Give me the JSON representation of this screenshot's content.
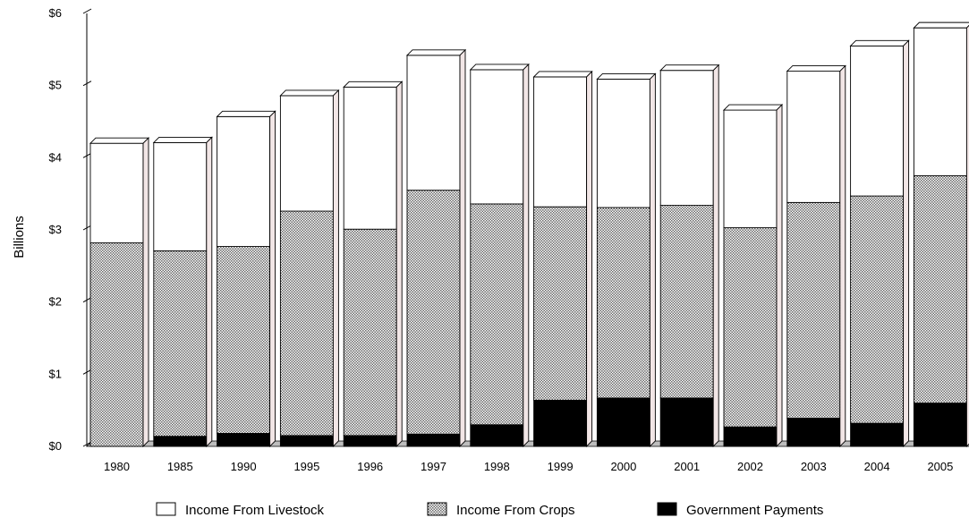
{
  "chart_data": {
    "type": "bar",
    "stacked": true,
    "style": "3d",
    "ylabel": "Billions",
    "xlabel": "",
    "ylim": [
      0,
      6
    ],
    "yticks": [
      "$0",
      "$1",
      "$2",
      "$3",
      "$4",
      "$5",
      "$6"
    ],
    "grid": false,
    "legend_position": "bottom",
    "categories": [
      "1980",
      "1985",
      "1990",
      "1995",
      "1996",
      "1997",
      "1998",
      "1999",
      "2000",
      "2001",
      "2002",
      "2003",
      "2004",
      "2005"
    ],
    "series": [
      {
        "name": "Government Payments",
        "pattern": "solid",
        "color": "#000000",
        "values": [
          0.0,
          0.14,
          0.18,
          0.15,
          0.15,
          0.17,
          0.3,
          0.64,
          0.67,
          0.67,
          0.27,
          0.39,
          0.32,
          0.6
        ]
      },
      {
        "name": "Income From Crops",
        "pattern": "dotted",
        "color": "#9a9a9a",
        "values": [
          2.82,
          2.57,
          2.59,
          3.11,
          2.86,
          3.38,
          3.06,
          2.68,
          2.64,
          2.67,
          2.76,
          2.99,
          3.15,
          3.15
        ]
      },
      {
        "name": "Income From Livestock",
        "pattern": "hollow",
        "color": "#ffffff",
        "values": [
          1.38,
          1.5,
          1.8,
          1.6,
          1.97,
          1.87,
          1.86,
          1.8,
          1.78,
          1.87,
          1.63,
          1.82,
          2.08,
          2.05
        ]
      }
    ]
  },
  "legend": {
    "items": [
      {
        "label": "Income From Livestock",
        "pattern": "hollow"
      },
      {
        "label": "Income From Crops",
        "pattern": "dotted"
      },
      {
        "label": "Government Payments",
        "pattern": "solid"
      }
    ]
  }
}
